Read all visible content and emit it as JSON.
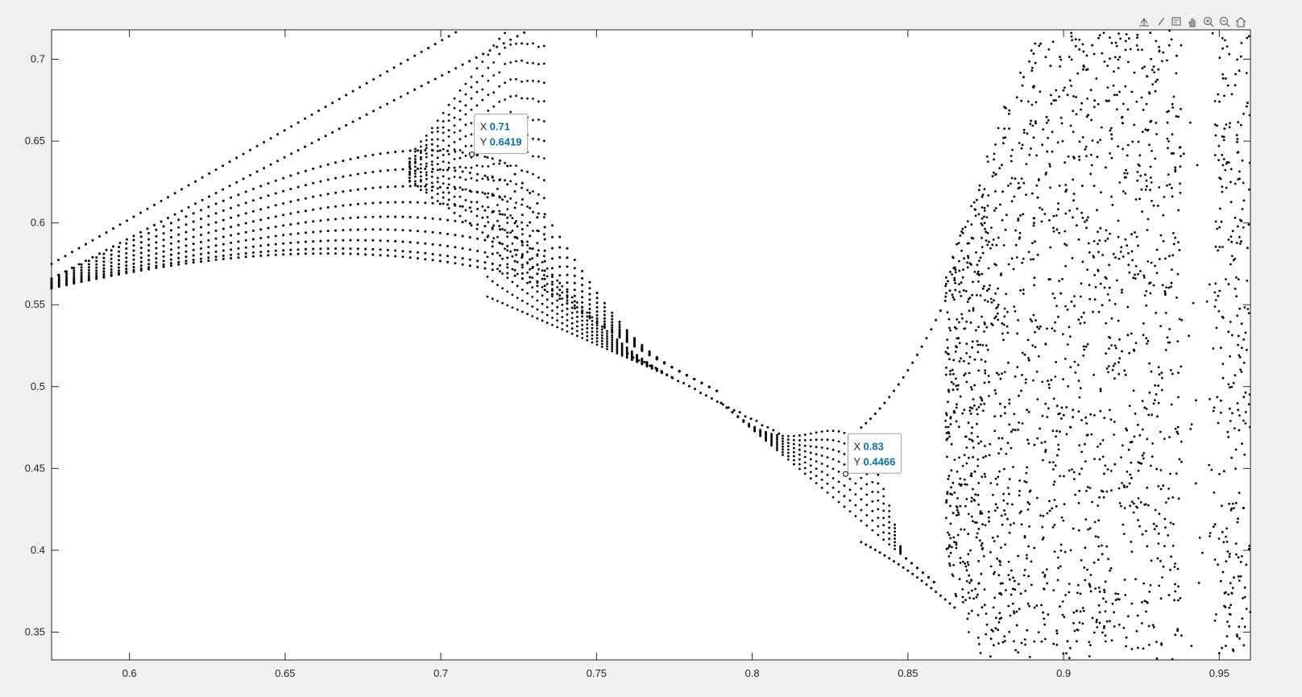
{
  "chart_data": {
    "type": "scatter",
    "title": "",
    "xlabel": "",
    "ylabel": "",
    "xlim": [
      0.575,
      0.96
    ],
    "ylim": [
      0.333,
      0.718
    ],
    "x_ticks": [
      "0.6",
      "0.65",
      "0.7",
      "0.75",
      "0.8",
      "0.85",
      "0.9",
      "0.95"
    ],
    "y_ticks": [
      "0.35",
      "0.4",
      "0.45",
      "0.5",
      "0.55",
      "0.6",
      "0.65",
      "0.7"
    ],
    "grid": false,
    "marker_color": "#000000",
    "series_description_points": {
      "branch_x": [
        0.575,
        0.6,
        0.625,
        0.65,
        0.675,
        0.7,
        0.71,
        0.72,
        0.73,
        0.74,
        0.75,
        0.76,
        0.77,
        0.78,
        0.79,
        0.8,
        0.81,
        0.82,
        0.83,
        0.84,
        0.85,
        0.855
      ],
      "lower_envelope_y": [
        0.56,
        0.571,
        0.577,
        0.58,
        0.578,
        0.568,
        0.562,
        0.552,
        0.54,
        0.528,
        0.517,
        0.506,
        0.496,
        0.486,
        0.476,
        0.466,
        0.455,
        0.444,
        0.431,
        0.413,
        0.392,
        0.381
      ],
      "upper_envelope_y": [
        0.575,
        0.602,
        0.629,
        0.657,
        0.684,
        0.711,
        0.72,
        0.72,
        0.72,
        0.62,
        0.56,
        0.525,
        0.507,
        0.5,
        0.493,
        0.485,
        0.474,
        0.471,
        0.471,
        0.48,
        0.502,
        0.514
      ],
      "chaos_start_x": 0.862
    },
    "datatips": [
      {
        "x_label": "X",
        "x_value": "0.71",
        "y_label": "Y",
        "y_value": "0.6419",
        "x": 0.71,
        "y": 0.6419
      },
      {
        "x_label": "X",
        "x_value": "0.83",
        "y_label": "Y",
        "y_value": "0.4466",
        "x": 0.83,
        "y": 0.4466
      }
    ],
    "colors": {
      "axes_bg": "#ffffff",
      "figure_bg": "#f0f0f0",
      "datatip_value": "#0072bd",
      "axis": "#262626"
    }
  },
  "toolbar": {
    "icons": [
      "export-icon",
      "brush-icon",
      "datatip-icon",
      "pan-icon",
      "zoom-in-icon",
      "zoom-out-icon",
      "home-icon"
    ]
  }
}
